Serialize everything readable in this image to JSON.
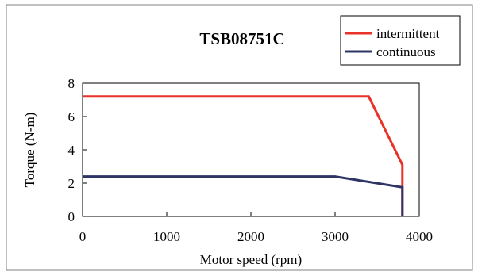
{
  "chart_data": {
    "type": "line",
    "title": "TSB08751C",
    "xlabel": "Motor speed (rpm)",
    "ylabel": "Torque (N-m)",
    "xlim": [
      0,
      4000
    ],
    "ylim": [
      0,
      8
    ],
    "xticks": [
      0,
      1000,
      2000,
      3000,
      4000
    ],
    "yticks": [
      0,
      2,
      4,
      6,
      8
    ],
    "xtick_labels": [
      "0",
      "1000",
      "2000",
      "3000",
      "4000"
    ],
    "ytick_labels": [
      "0",
      "2",
      "4",
      "6",
      "8"
    ],
    "grid": false,
    "legend_position": "top-right",
    "series": [
      {
        "name": "intermittent",
        "color": "#e8322a",
        "x": [
          0,
          3400,
          3800,
          3800
        ],
        "y": [
          7.2,
          7.2,
          3.1,
          0
        ]
      },
      {
        "name": "continuous",
        "color": "#2e3566",
        "x": [
          0,
          3000,
          3800,
          3800
        ],
        "y": [
          2.4,
          2.4,
          1.75,
          0
        ]
      }
    ]
  }
}
